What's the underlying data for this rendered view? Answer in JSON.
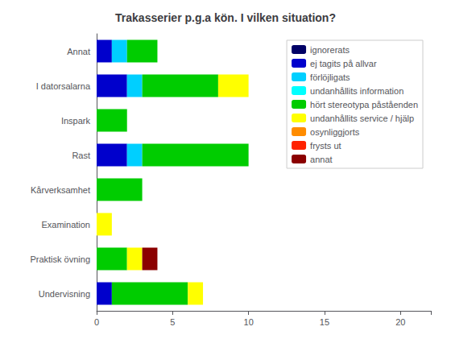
{
  "chart_data": {
    "type": "bar",
    "orientation": "horizontal",
    "stacked": true,
    "title": "Trakasserier p.g.a kön. I vilken situation?",
    "categories": [
      "Undervisning",
      "Praktisk övning",
      "Examination",
      "Kårverksamhet",
      "Rast",
      "Inspark",
      "I datorsalarna",
      "Annat"
    ],
    "series": [
      {
        "name": "ignorerats",
        "color": "#000066",
        "values": [
          0,
          0,
          0,
          0,
          0,
          0,
          0,
          0
        ]
      },
      {
        "name": "ej tagits på allvar",
        "color": "#0000cc",
        "values": [
          1,
          0,
          0,
          0,
          2,
          0,
          2,
          1
        ]
      },
      {
        "name": "förlöjligats",
        "color": "#00cfff",
        "values": [
          0,
          0,
          0,
          0,
          1,
          0,
          1,
          1
        ]
      },
      {
        "name": "undanhållits information",
        "color": "#00ffff",
        "values": [
          0,
          0,
          0,
          0,
          0,
          0,
          0,
          0
        ]
      },
      {
        "name": "hört stereotypa påståenden",
        "color": "#00cc00",
        "values": [
          5,
          2,
          0,
          3,
          7,
          2,
          5,
          2
        ]
      },
      {
        "name": "undanhållits service / hjälp",
        "color": "#ffff00",
        "values": [
          1,
          1,
          1,
          0,
          0,
          0,
          2,
          0
        ]
      },
      {
        "name": "osynliggjorts",
        "color": "#ff8c00",
        "values": [
          0,
          0,
          0,
          0,
          0,
          0,
          0,
          0
        ]
      },
      {
        "name": "frysts ut",
        "color": "#ff2200",
        "values": [
          0,
          0,
          0,
          0,
          0,
          0,
          0,
          0
        ]
      },
      {
        "name": "annat",
        "color": "#8b0000",
        "values": [
          0,
          1,
          0,
          0,
          0,
          0,
          0,
          0
        ]
      }
    ],
    "xlim": [
      0,
      22
    ],
    "xticks": [
      0,
      5,
      10,
      15,
      20
    ],
    "grid": false,
    "legend": "upper right"
  }
}
